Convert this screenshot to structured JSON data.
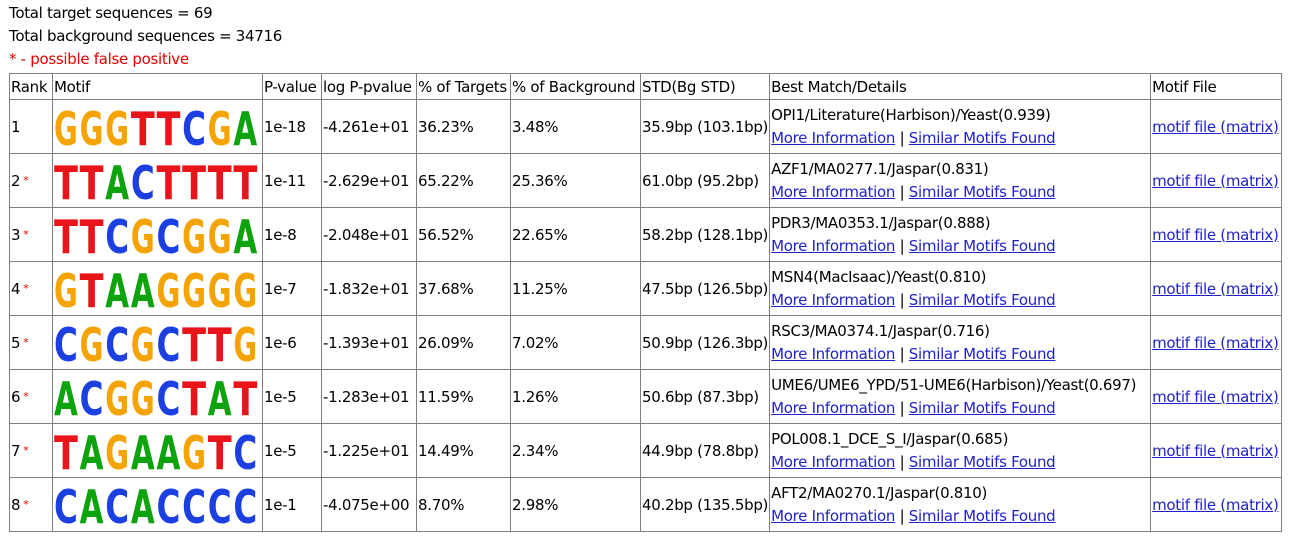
{
  "summary": {
    "target_line": "Total target sequences = 69",
    "background_line": "Total background sequences = 34716",
    "false_positive_note": "* - possible false positive"
  },
  "table": {
    "headers": [
      "Rank",
      "Motif",
      "P-value",
      "log P-pvalue",
      "% of Targets",
      "% of Background",
      "STD(Bg STD)",
      "Best Match/Details",
      "Motif File"
    ],
    "more_info_label": "More Information",
    "separator": "|",
    "similar_label": "Similar Motifs Found",
    "motif_file_label": "motif file (matrix)",
    "star": "*",
    "rows": [
      {
        "rank": "1",
        "star": false,
        "consensus": "GGGTTCGA",
        "pvalue": "1e-18",
        "logp": "-4.261e+01",
        "targets": "36.23%",
        "background": "3.48%",
        "std": "35.9bp (103.1bp)",
        "best_match": "OPI1/Literature(Harbison)/Yeast(0.939)"
      },
      {
        "rank": "2",
        "star": true,
        "consensus": "TTACTTTT",
        "pvalue": "1e-11",
        "logp": "-2.629e+01",
        "targets": "65.22%",
        "background": "25.36%",
        "std": "61.0bp (95.2bp)",
        "best_match": "AZF1/MA0277.1/Jaspar(0.831)"
      },
      {
        "rank": "3",
        "star": true,
        "consensus": "TTCGCGGA",
        "pvalue": "1e-8",
        "logp": "-2.048e+01",
        "targets": "56.52%",
        "background": "22.65%",
        "std": "58.2bp (128.1bp)",
        "best_match": "PDR3/MA0353.1/Jaspar(0.888)"
      },
      {
        "rank": "4",
        "star": true,
        "consensus": "GTAAGGGG",
        "pvalue": "1e-7",
        "logp": "-1.832e+01",
        "targets": "37.68%",
        "background": "11.25%",
        "std": "47.5bp (126.5bp)",
        "best_match": "MSN4(MacIsaac)/Yeast(0.810)"
      },
      {
        "rank": "5",
        "star": true,
        "consensus": "CGCGCTTG",
        "pvalue": "1e-6",
        "logp": "-1.393e+01",
        "targets": "26.09%",
        "background": "7.02%",
        "std": "50.9bp (126.3bp)",
        "best_match": "RSC3/MA0374.1/Jaspar(0.716)"
      },
      {
        "rank": "6",
        "star": true,
        "consensus": "ACGGCTAT",
        "pvalue": "1e-5",
        "logp": "-1.283e+01",
        "targets": "11.59%",
        "background": "1.26%",
        "std": "50.6bp (87.3bp)",
        "best_match": "UME6/UME6_YPD/51-UME6(Harbison)/Yeast(0.697)"
      },
      {
        "rank": "7",
        "star": true,
        "consensus": "TAGAAGTC",
        "pvalue": "1e-5",
        "logp": "-1.225e+01",
        "targets": "14.49%",
        "background": "2.34%",
        "std": "44.9bp (78.8bp)",
        "best_match": "POL008.1_DCE_S_I/Jaspar(0.685)"
      },
      {
        "rank": "8",
        "star": true,
        "consensus": "CACACCCC",
        "pvalue": "1e-1",
        "logp": "-4.075e+00",
        "targets": "8.70%",
        "background": "2.98%",
        "std": "40.2bp (135.5bp)",
        "best_match": "AFT2/MA0270.1/Jaspar(0.810)"
      }
    ]
  },
  "nucleotide_colors": {
    "A": "#0da30d",
    "C": "#1b3fe0",
    "G": "#f5a300",
    "T": "#e8141a"
  }
}
